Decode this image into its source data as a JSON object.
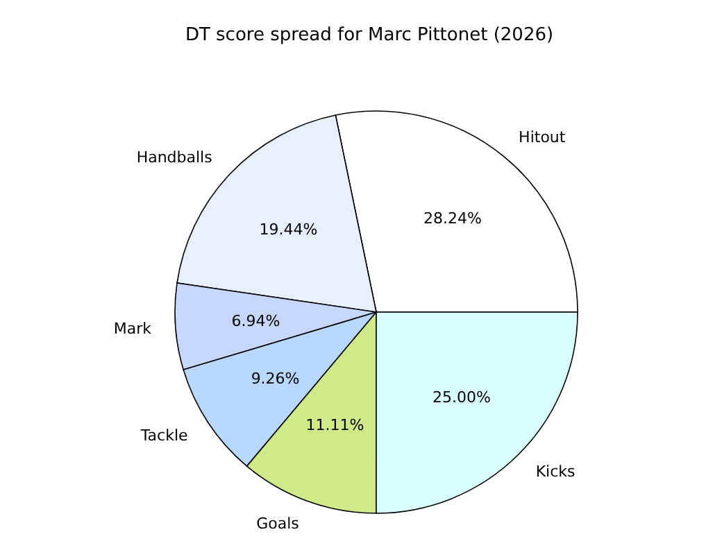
{
  "chart_data": {
    "type": "pie",
    "title": "DT score spread for Marc Pittonet (2026)",
    "categories": [
      "Hitout",
      "Handballs",
      "Mark",
      "Tackle",
      "Goals",
      "Kicks"
    ],
    "values": [
      28.24,
      19.44,
      6.94,
      9.26,
      11.11,
      25.0
    ],
    "value_labels": [
      "28.24%",
      "19.44%",
      "6.94%",
      "9.26%",
      "11.11%",
      "25.00%"
    ],
    "colors": [
      "#ffffff",
      "#e8f0ff",
      "#c6d8ff",
      "#b8d8ff",
      "#d0ea8a",
      "#d9ffff"
    ],
    "legend": false
  }
}
